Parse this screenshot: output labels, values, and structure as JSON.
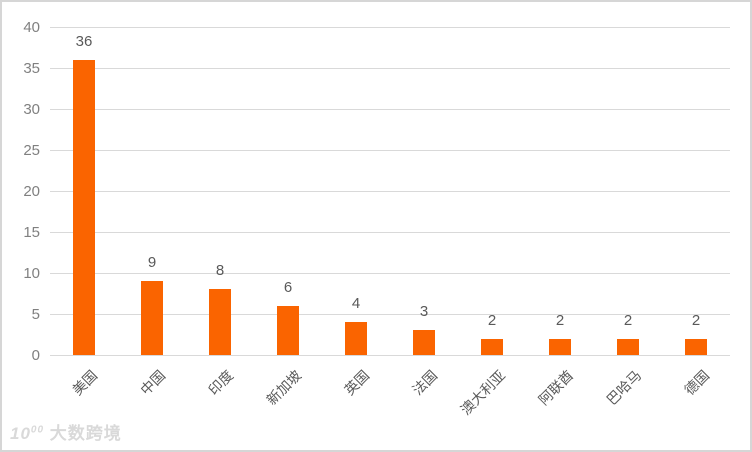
{
  "chart_data": {
    "type": "bar",
    "categories": [
      "美国",
      "中国",
      "印度",
      "新加坡",
      "英国",
      "法国",
      "澳大利亚",
      "阿联酋",
      "巴哈马",
      "德国"
    ],
    "values": [
      36,
      9,
      8,
      6,
      4,
      3,
      2,
      2,
      2,
      2
    ],
    "title": "",
    "xlabel": "",
    "ylabel": "",
    "ylim": [
      0,
      40
    ],
    "yticks": [
      0,
      5,
      10,
      15,
      20,
      25,
      30,
      35,
      40
    ],
    "grid": true,
    "legend": false,
    "data_labels_shown": true,
    "bar_color": "#fa6400",
    "gridline_color": "#d9d9d9",
    "axis_tick_color": "#808080",
    "data_label_color": "#595959",
    "x_label_rotation_deg": 45
  },
  "watermark": {
    "logo": "10",
    "logo_sup": "00",
    "text": "大数跨境"
  }
}
